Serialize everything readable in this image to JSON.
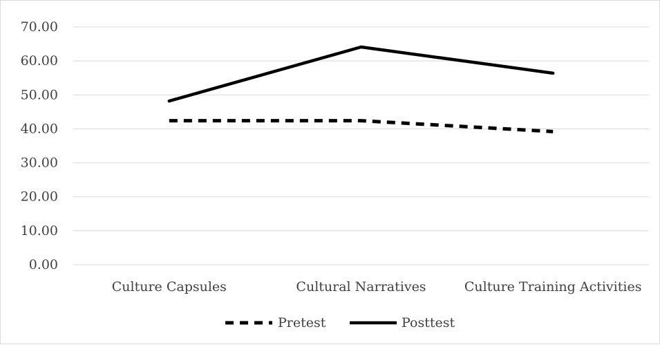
{
  "chart_data": {
    "type": "line",
    "title": "",
    "xlabel": "",
    "ylabel": "",
    "categories": [
      "Culture Capsules",
      "Cultural Narratives",
      "Culture Training Activities"
    ],
    "ylim": [
      0,
      70
    ],
    "ytick_step": 10,
    "ytick_labels": [
      "0.00",
      "10.00",
      "20.00",
      "30.00",
      "40.00",
      "50.00",
      "60.00",
      "70.00"
    ],
    "grid": true,
    "legend_position": "bottom",
    "series": [
      {
        "name": "Pretest",
        "values": [
          42.4,
          42.4,
          39.2
        ],
        "color": "#000000",
        "style": "dashed"
      },
      {
        "name": "Posttest",
        "values": [
          48.2,
          64.1,
          56.4
        ],
        "color": "#000000",
        "style": "solid"
      }
    ],
    "gridline_color": "#d9d9d9"
  }
}
